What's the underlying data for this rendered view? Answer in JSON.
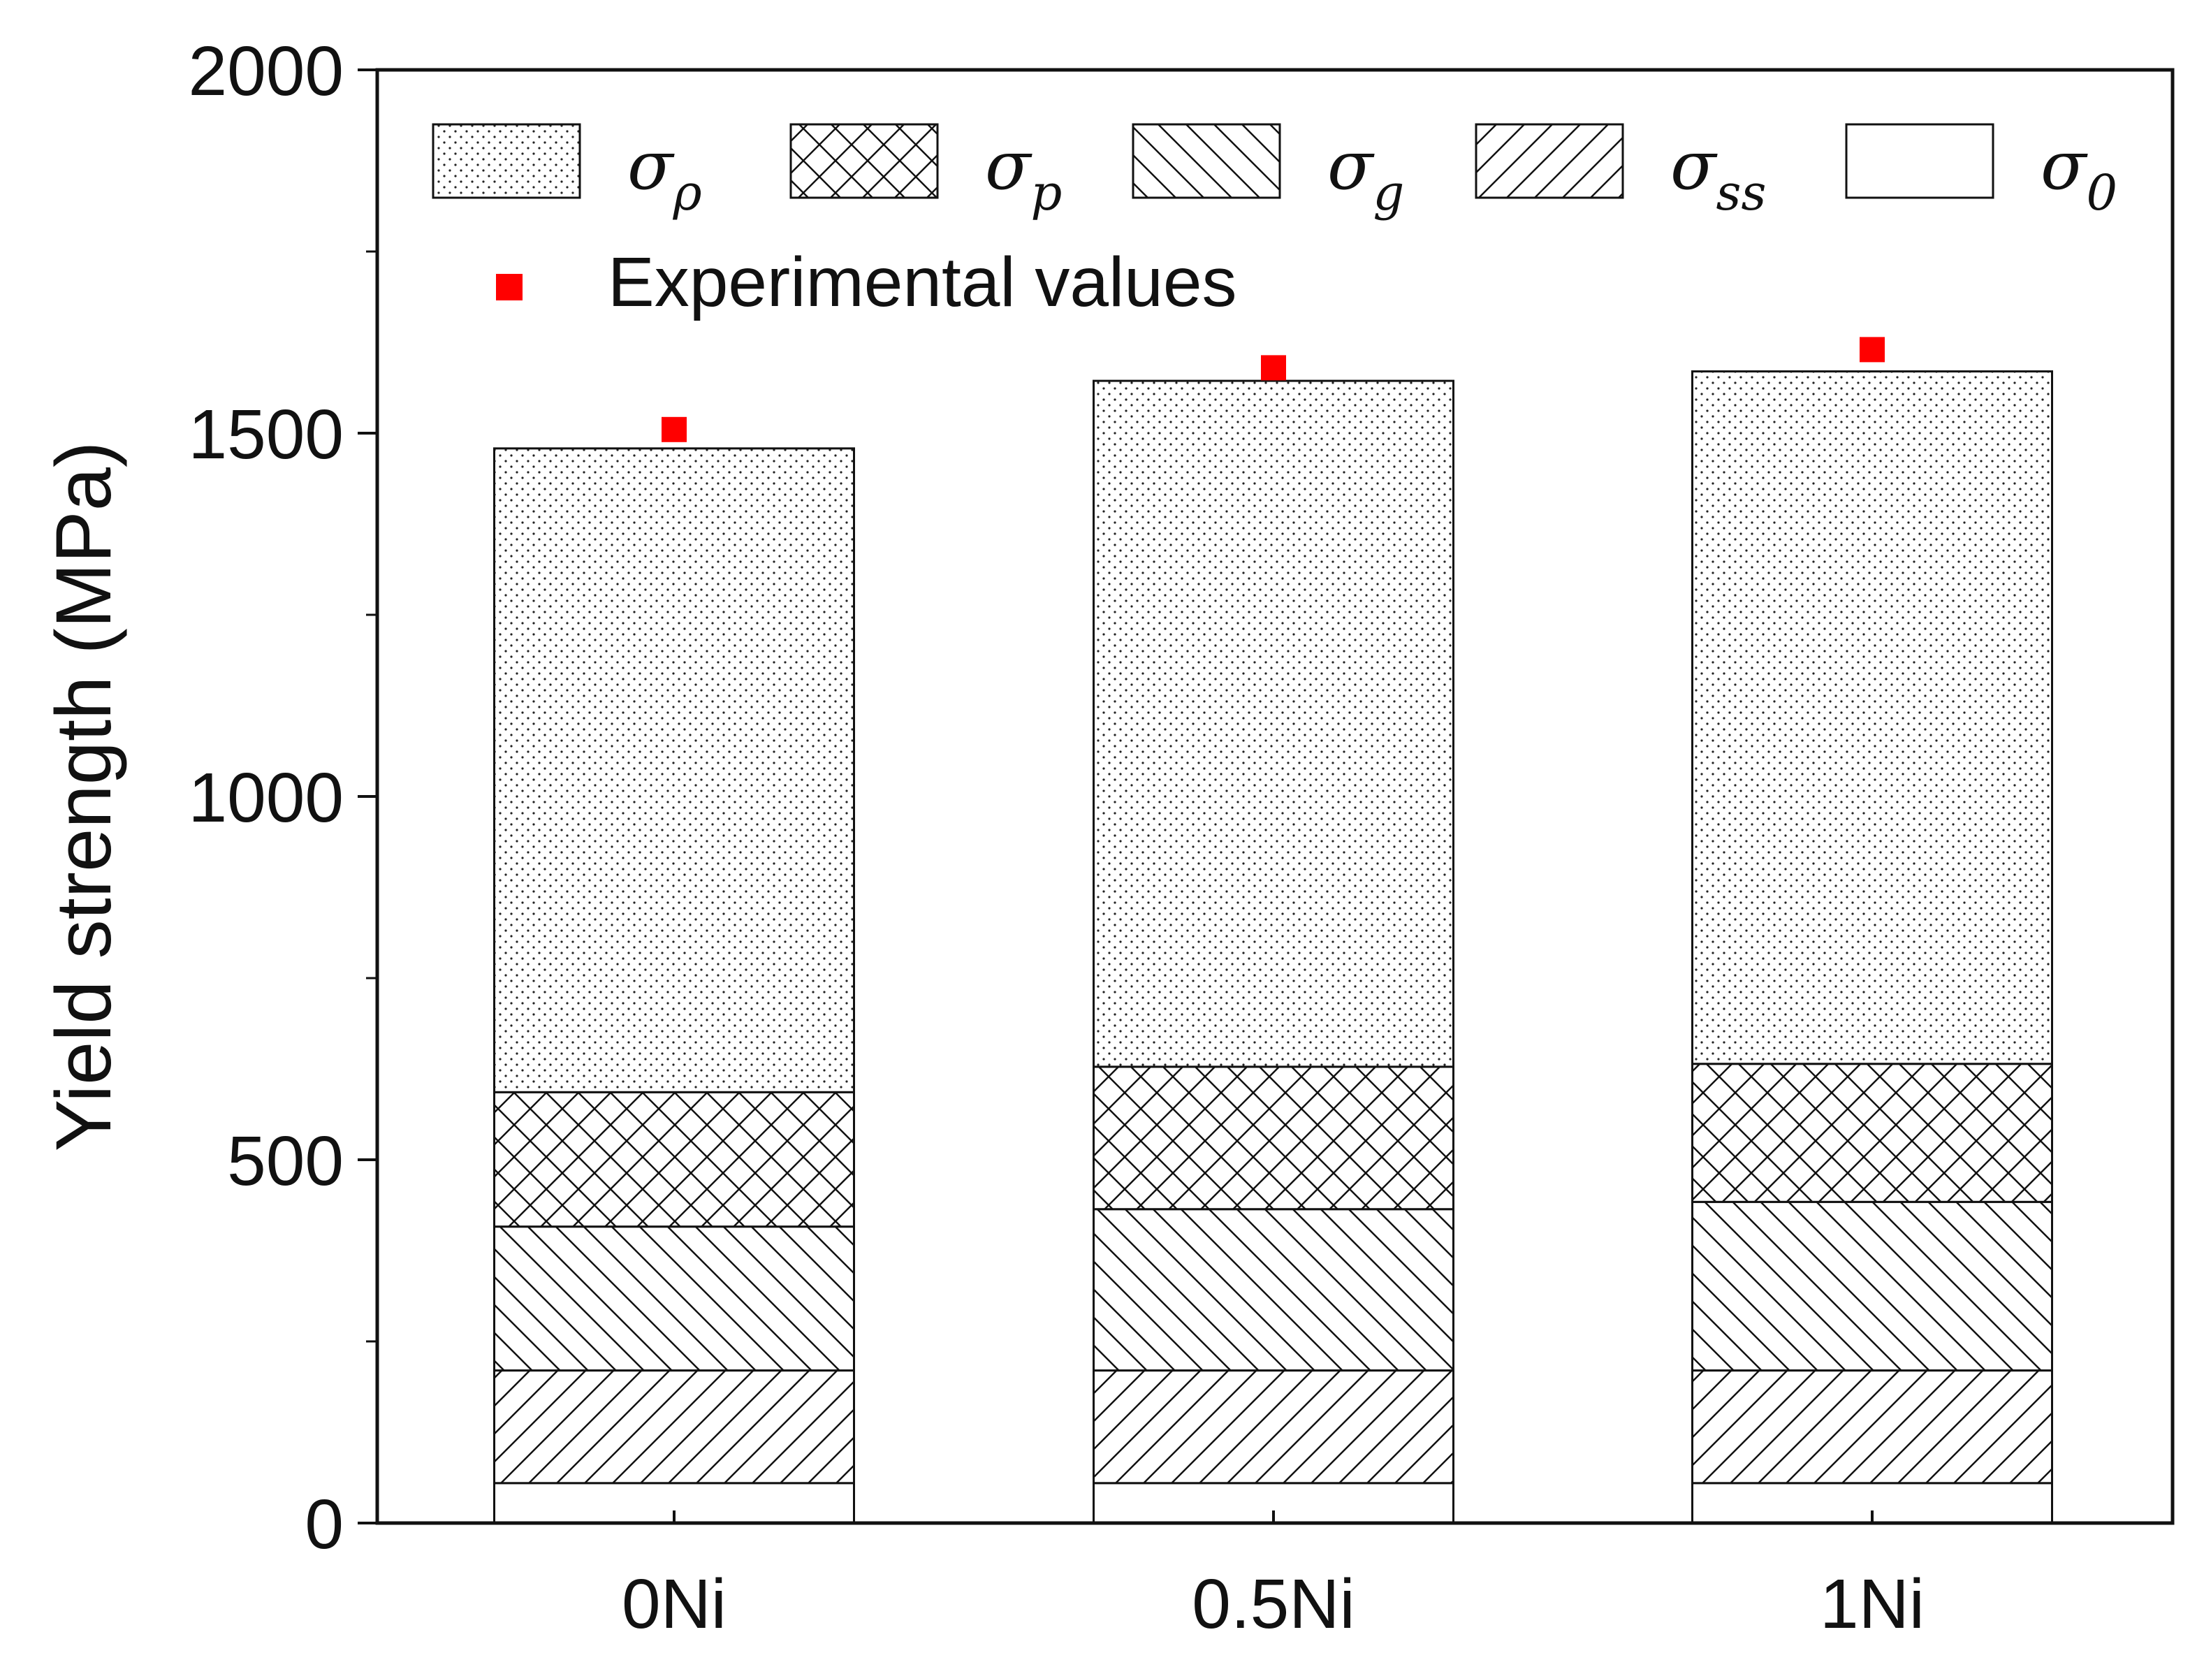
{
  "chart_data": {
    "type": "stacked-bar",
    "title": "",
    "xlabel": "",
    "ylabel": "Yield strength (MPa)",
    "ylim": [
      0,
      2000
    ],
    "yticks": [
      "0",
      "500",
      "1000",
      "1500",
      "2000"
    ],
    "categories": [
      "0Ni",
      "0.5Ni",
      "1Ni"
    ],
    "series": [
      {
        "name": "σ0",
        "sym": "σ",
        "sub": "0",
        "pattern": "blank",
        "values": [
          55,
          55,
          55
        ]
      },
      {
        "name": "σss",
        "sym": "σ",
        "sub": "ss",
        "pattern": "fdiag",
        "values": [
          155,
          155,
          155
        ]
      },
      {
        "name": "σg",
        "sym": "σ",
        "sub": "g",
        "pattern": "bdiag",
        "values": [
          198,
          222,
          232
        ]
      },
      {
        "name": "σp",
        "sym": "σ",
        "sub": "p",
        "pattern": "cross",
        "values": [
          185,
          196,
          190
        ]
      },
      {
        "name": "σρ",
        "sym": "σ",
        "sub": "ρ",
        "pattern": "dots",
        "values": [
          886,
          944,
          953
        ]
      }
    ],
    "legend_order": [
      "σρ",
      "σp",
      "σg",
      "σss",
      "σ0"
    ],
    "experimental": {
      "label": "Experimental values",
      "values": [
        1505,
        1590,
        1615
      ],
      "color": "#ff0000"
    },
    "legend": "top"
  }
}
